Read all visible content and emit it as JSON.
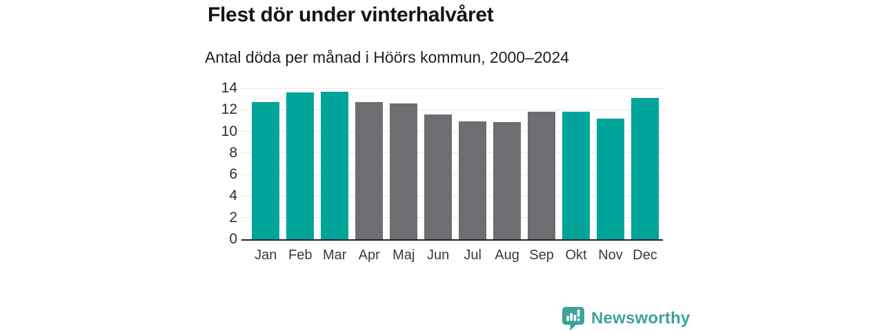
{
  "header": {
    "title": "Flest dör under vinterhalvåret",
    "subtitle": "Antal döda per månad i Höörs kommun, 2000–2024"
  },
  "chart_data": {
    "type": "bar",
    "title": "Flest dör under vinterhalvåret",
    "subtitle": "Antal döda per månad i Höörs kommun, 2000–2024",
    "categories": [
      "Jan",
      "Feb",
      "Mar",
      "Apr",
      "Maj",
      "Jun",
      "Jul",
      "Aug",
      "Sep",
      "Okt",
      "Nov",
      "Dec"
    ],
    "values": [
      12.7,
      13.6,
      13.7,
      12.75,
      12.6,
      11.6,
      10.95,
      10.9,
      11.85,
      11.85,
      11.2,
      13.1
    ],
    "bar_colors": [
      "highlight",
      "highlight",
      "highlight",
      "muted",
      "muted",
      "muted",
      "muted",
      "muted",
      "muted",
      "highlight",
      "highlight",
      "highlight"
    ],
    "palette": {
      "highlight": "#00a49b",
      "muted": "#6e6e72"
    },
    "xlabel": "",
    "ylabel": "",
    "ylim": [
      0,
      14
    ],
    "yticks": [
      0,
      2,
      4,
      6,
      8,
      10,
      12,
      14
    ],
    "grid": true,
    "legend": "none",
    "gridline_color": "#e8e8e8",
    "axis_line_color": "#202020"
  },
  "footer": {
    "brand": "Newsworthy",
    "brand_color": "#3fa29b"
  }
}
